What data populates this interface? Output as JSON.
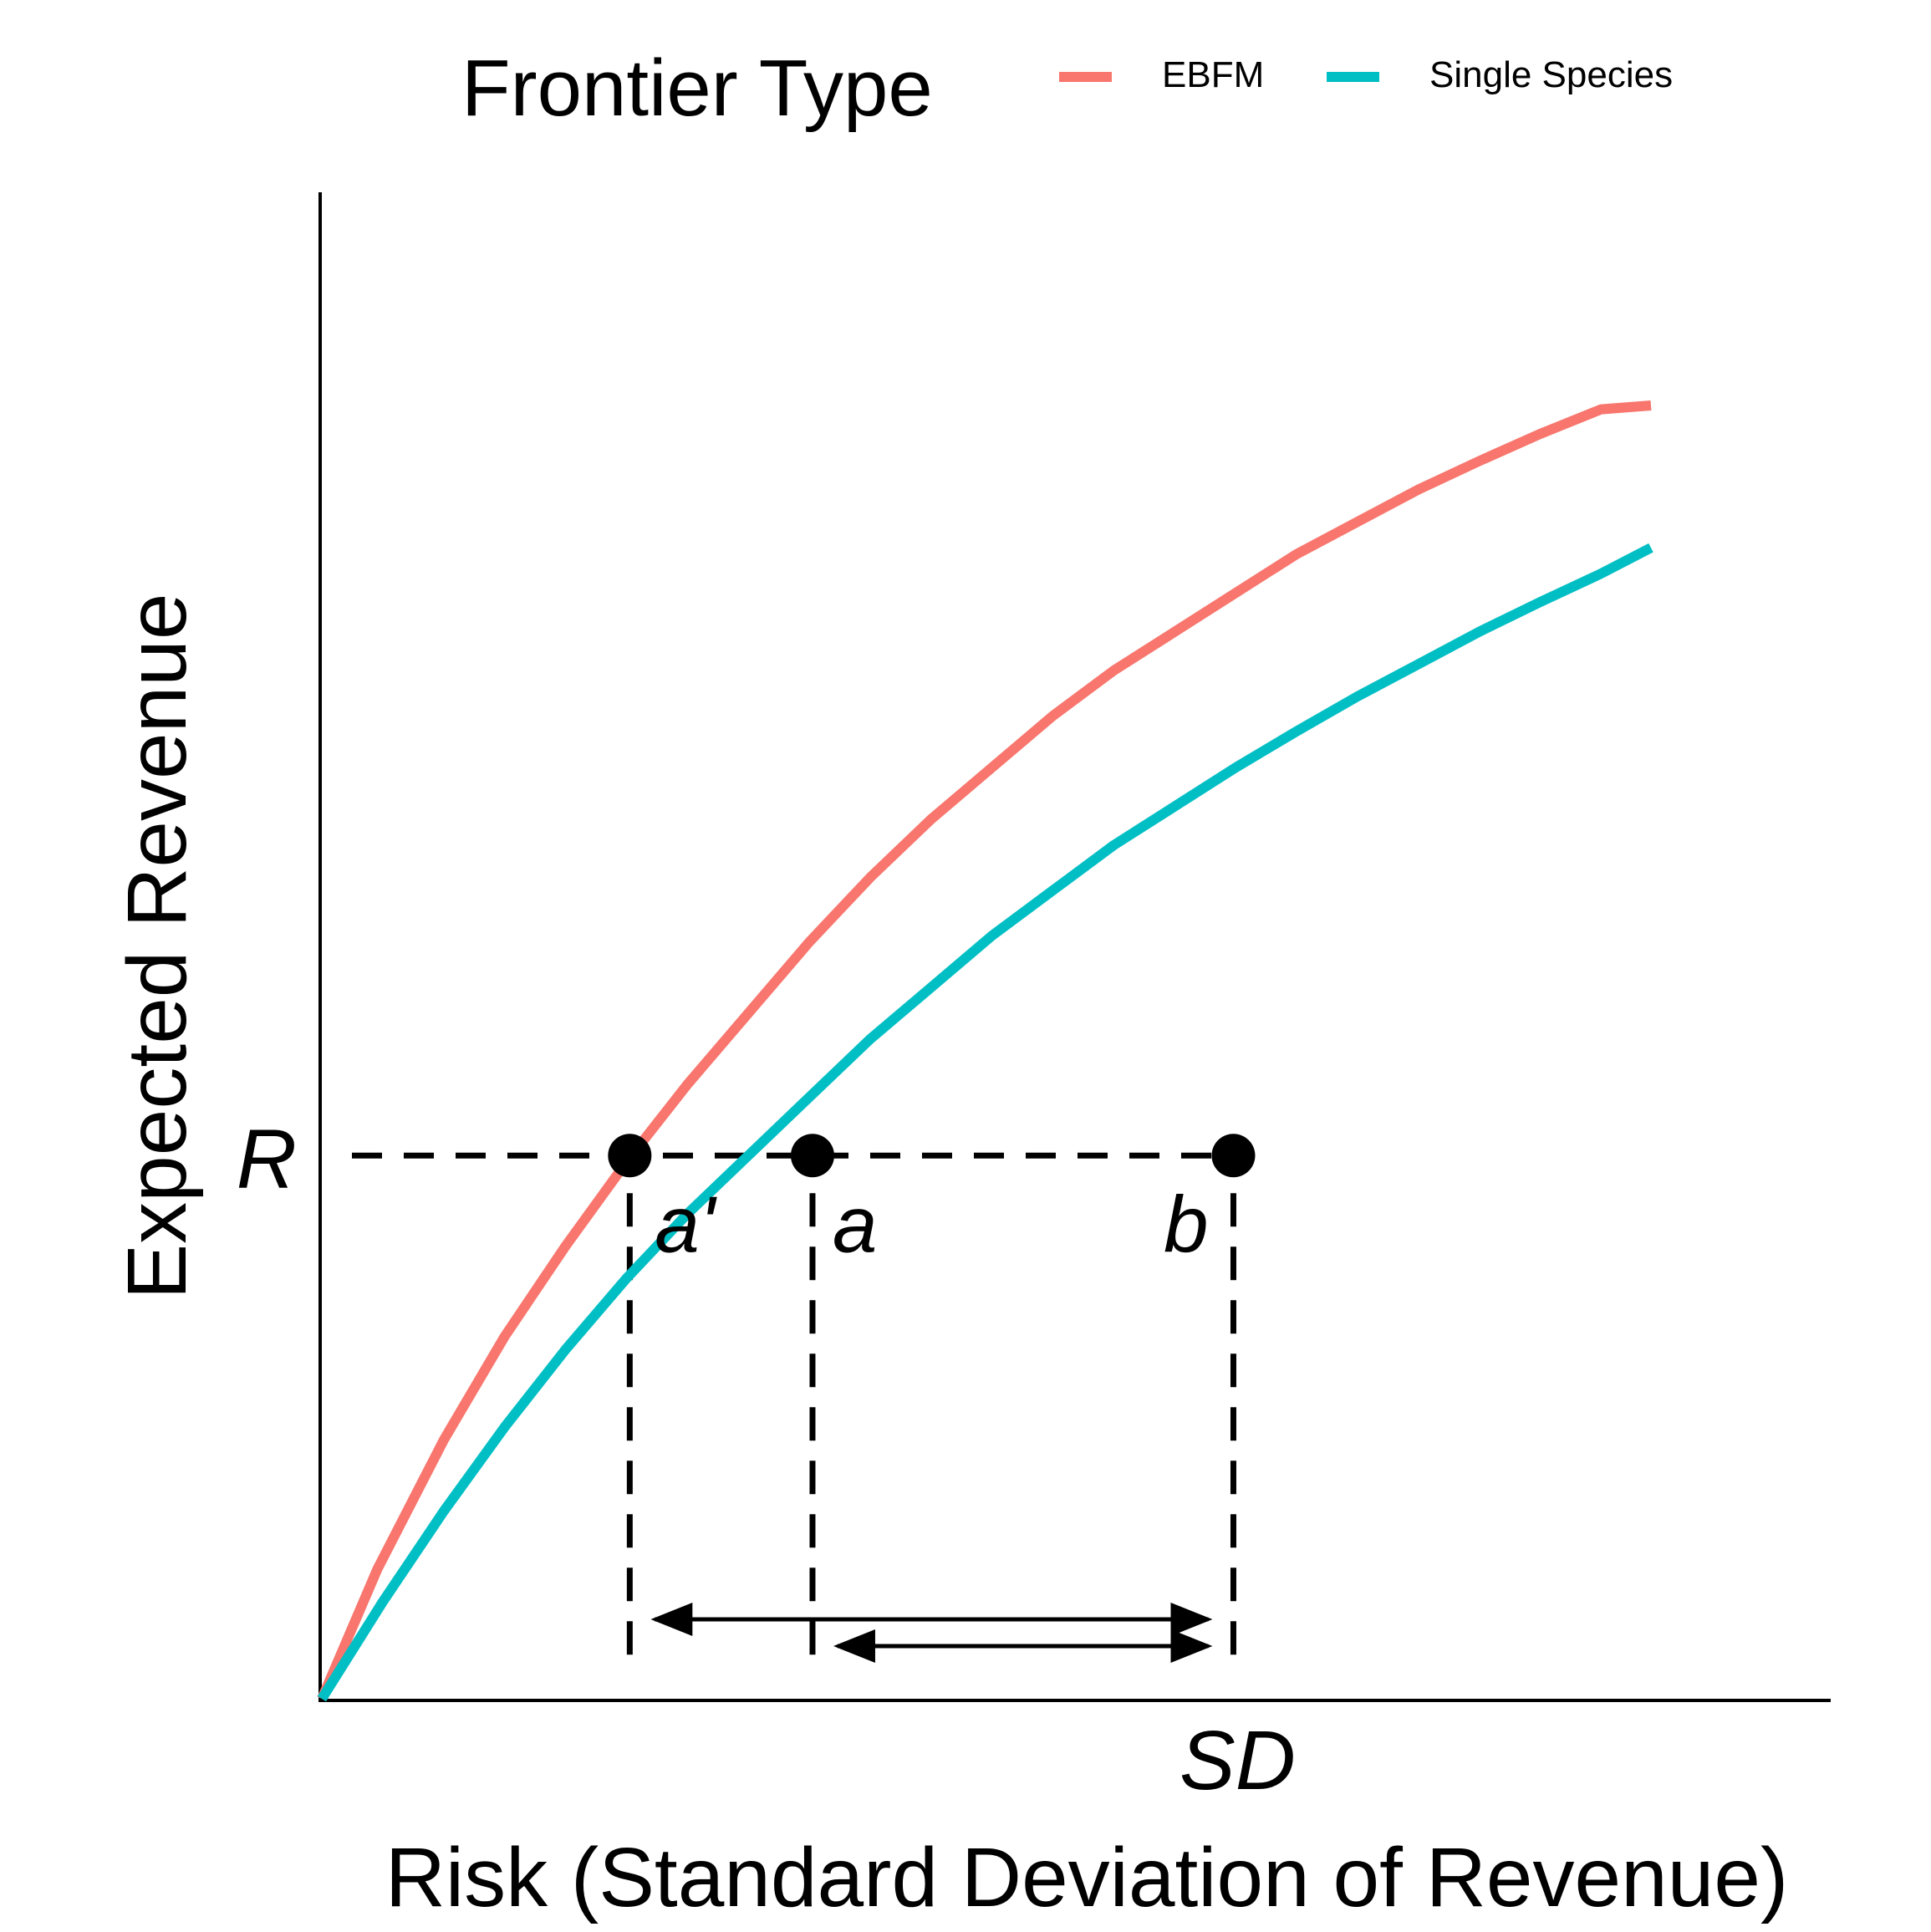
{
  "chart_data": {
    "type": "line",
    "title": "",
    "xlabel": "Risk (Standard Deviation of Revenue)",
    "ylabel": "Expected Revenue",
    "xlim": [
      0,
      1.2
    ],
    "ylim": [
      0,
      1.0
    ],
    "grid": false,
    "legend": {
      "title": "Frontier Type",
      "placement": "top",
      "entries": [
        {
          "label": "EBFM",
          "color": "#F8766D"
        },
        {
          "label": "Single Species",
          "color": "#00BFC4"
        }
      ]
    },
    "series": [
      {
        "name": "EBFM",
        "color": "#F8766D",
        "x": [
          0,
          0.05,
          0.11,
          0.165,
          0.22,
          0.275,
          0.33,
          0.385,
          0.44,
          0.495,
          0.55,
          0.605,
          0.66,
          0.715,
          0.77,
          0.825,
          0.88,
          0.935,
          0.99,
          1.045,
          1.1,
          1.155,
          1.2
        ],
        "y": [
          0,
          0.1,
          0.2,
          0.28,
          0.35,
          0.415,
          0.475,
          0.53,
          0.585,
          0.635,
          0.68,
          0.72,
          0.76,
          0.795,
          0.825,
          0.855,
          0.885,
          0.91,
          0.935,
          0.957,
          0.978,
          0.997,
          1.0
        ]
      },
      {
        "name": "Single Species",
        "color": "#00BFC4",
        "x": [
          0,
          0.055,
          0.11,
          0.165,
          0.22,
          0.275,
          0.33,
          0.385,
          0.44,
          0.495,
          0.55,
          0.605,
          0.66,
          0.715,
          0.77,
          0.825,
          0.88,
          0.935,
          0.99,
          1.045,
          1.1,
          1.155,
          1.2
        ],
        "y": [
          0,
          0.075,
          0.145,
          0.21,
          0.27,
          0.325,
          0.375,
          0.42,
          0.465,
          0.51,
          0.55,
          0.59,
          0.625,
          0.66,
          0.69,
          0.72,
          0.748,
          0.775,
          0.8,
          0.825,
          0.848,
          0.87,
          0.89
        ]
      }
    ],
    "reference_level": {
      "label": "R",
      "y": 0.42
    },
    "points": [
      {
        "label": "a'",
        "x": 0.278,
        "y": 0.42
      },
      {
        "label": "a",
        "x": 0.443,
        "y": 0.42
      },
      {
        "label": "b",
        "x": 0.823,
        "y": 0.42
      }
    ],
    "x_marker": {
      "label": "SD",
      "x": 0.823
    },
    "arrows": [
      {
        "from": 0.278,
        "to": 0.823
      },
      {
        "from": 0.443,
        "to": 0.823
      }
    ]
  }
}
